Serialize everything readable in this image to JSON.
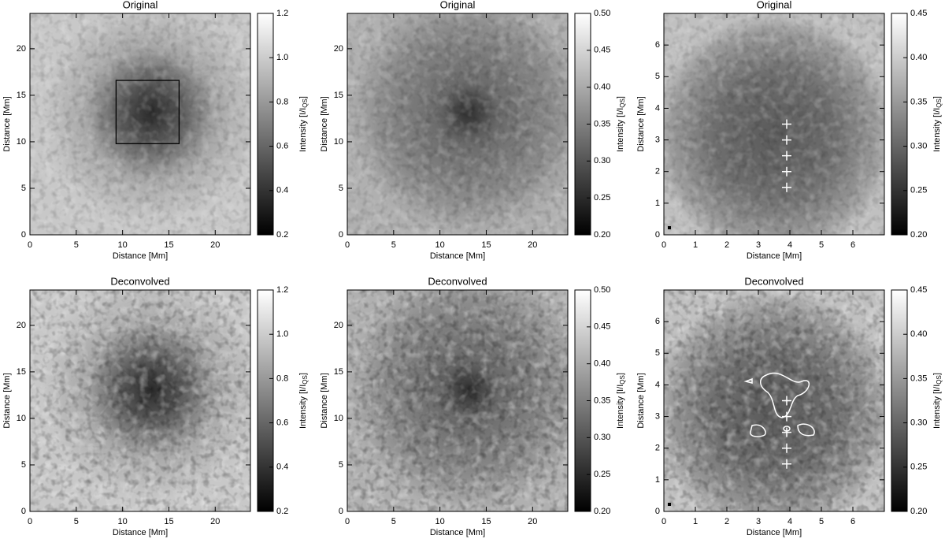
{
  "chart_data": [
    {
      "type": "image",
      "title": "Original",
      "xlabel": "Distance [Mm]",
      "ylabel": "Distance [Mm]",
      "xlim": [
        0,
        23.8
      ],
      "ylim": [
        0,
        23.8
      ],
      "xticks": [
        0,
        5,
        10,
        15,
        20
      ],
      "yticks": [
        0,
        5,
        10,
        15,
        20
      ],
      "colorbar_label": [
        "Intensity [I/I",
        "QS",
        "]"
      ],
      "colorbar_lim": [
        0.2,
        1.2
      ],
      "colorbar_ticks": [
        0.2,
        0.4,
        0.6,
        0.8,
        {
          "value": 1,
          "label": "1.0"
        },
        1.2
      ],
      "box": {
        "x": [
          9.3,
          16.1
        ],
        "y": [
          9.8,
          16.6
        ]
      }
    },
    {
      "type": "image",
      "title": "Original",
      "xlabel": "Distance [Mm]",
      "ylabel": "Distance [Mm]",
      "xlim": [
        0,
        23.8
      ],
      "ylim": [
        0,
        23.8
      ],
      "xticks": [
        0,
        5,
        10,
        15,
        20
      ],
      "yticks": [
        0,
        5,
        10,
        15,
        20
      ],
      "colorbar_label": [
        "Intensity [I/I",
        "QS",
        "]"
      ],
      "colorbar_lim": [
        0.2,
        0.5
      ],
      "colorbar_ticks": [
        {
          "value": 0.2,
          "label": "0.20"
        },
        0.25,
        {
          "value": 0.3,
          "label": "0.30"
        },
        0.35,
        {
          "value": 0.4,
          "label": "0.40"
        },
        0.45,
        {
          "value": 0.5,
          "label": "0.50"
        }
      ]
    },
    {
      "type": "image",
      "title": "Original",
      "xlabel": "Distance [Mm]",
      "ylabel": "Distance [Mm]",
      "xlim": [
        0,
        7
      ],
      "ylim": [
        0,
        7
      ],
      "xticks": [
        0,
        1,
        2,
        3,
        4,
        5,
        6
      ],
      "yticks": [
        0,
        1,
        2,
        3,
        4,
        5,
        6
      ],
      "colorbar_label": [
        "Intensity [I/I",
        "QS",
        "]"
      ],
      "colorbar_lim": [
        0.2,
        0.45
      ],
      "colorbar_ticks": [
        {
          "value": 0.2,
          "label": "0.20"
        },
        0.25,
        {
          "value": 0.3,
          "label": "0.30"
        },
        0.35,
        {
          "value": 0.4,
          "label": "0.40"
        },
        0.45
      ],
      "markers": {
        "x": [
          3.9,
          3.9,
          3.9,
          3.9,
          3.9
        ],
        "y": [
          1.5,
          2,
          2.5,
          3,
          3.5
        ]
      }
    },
    {
      "type": "image",
      "title": "Deconvolved",
      "xlabel": "Distance [Mm]",
      "ylabel": "Distance [Mm]",
      "xlim": [
        0,
        23.8
      ],
      "ylim": [
        0,
        23.8
      ],
      "xticks": [
        0,
        5,
        10,
        15,
        20
      ],
      "yticks": [
        0,
        5,
        10,
        15,
        20
      ],
      "colorbar_label": [
        "Intensity [I/I",
        "QS",
        "]"
      ],
      "colorbar_lim": [
        0.2,
        1.2
      ],
      "colorbar_ticks": [
        0.2,
        0.4,
        0.6,
        0.8,
        {
          "value": 1,
          "label": "1.0"
        },
        1.2
      ]
    },
    {
      "type": "image",
      "title": "Deconvolved",
      "xlabel": "Distance [Mm]",
      "ylabel": "Distance [Mm]",
      "xlim": [
        0,
        23.8
      ],
      "ylim": [
        0,
        23.8
      ],
      "xticks": [
        0,
        5,
        10,
        15,
        20
      ],
      "yticks": [
        0,
        5,
        10,
        15,
        20
      ],
      "colorbar_label": [
        "Intensity [I/I",
        "QS",
        "]"
      ],
      "colorbar_lim": [
        0.2,
        0.5
      ],
      "colorbar_ticks": [
        {
          "value": 0.2,
          "label": "0.20"
        },
        0.25,
        {
          "value": 0.3,
          "label": "0.30"
        },
        0.35,
        {
          "value": 0.4,
          "label": "0.40"
        },
        0.45,
        {
          "value": 0.5,
          "label": "0.50"
        }
      ]
    },
    {
      "type": "image",
      "title": "Deconvolved",
      "xlabel": "Distance [Mm]",
      "ylabel": "Distance [Mm]",
      "xlim": [
        0,
        7
      ],
      "ylim": [
        0,
        7
      ],
      "xticks": [
        0,
        1,
        2,
        3,
        4,
        5,
        6
      ],
      "yticks": [
        0,
        1,
        2,
        3,
        4,
        5,
        6
      ],
      "colorbar_label": [
        "Intensity [I/I",
        "QS",
        "]"
      ],
      "colorbar_lim": [
        0.2,
        0.45
      ],
      "colorbar_ticks": [
        {
          "value": 0.2,
          "label": "0.20"
        },
        0.25,
        {
          "value": 0.3,
          "label": "0.30"
        },
        0.35,
        {
          "value": 0.4,
          "label": "0.40"
        },
        0.45
      ],
      "markers": {
        "x": [
          3.9,
          3.9,
          3.9,
          3.9,
          3.9
        ],
        "y": [
          1.5,
          2,
          2.5,
          3,
          3.5
        ]
      }
    }
  ]
}
